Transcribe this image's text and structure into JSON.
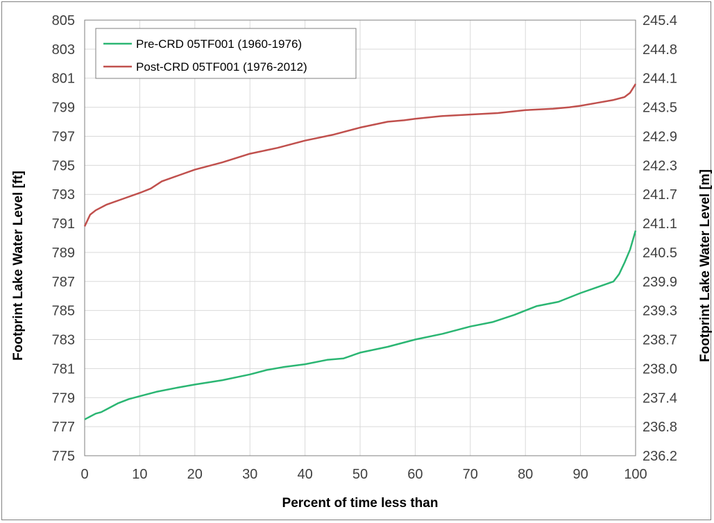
{
  "chart_data": {
    "type": "line",
    "xlabel": "Percent of time less than",
    "ylabel": "Footprint Lake Water Level [ft]",
    "y2label": "Footprint Lake Water Level [m]",
    "xlim": [
      0,
      100
    ],
    "ylim": [
      775,
      805
    ],
    "x_ticks": [
      "0",
      "10",
      "20",
      "30",
      "40",
      "50",
      "60",
      "70",
      "80",
      "90",
      "100"
    ],
    "y_ticks": [
      "775",
      "777",
      "779",
      "781",
      "783",
      "785",
      "787",
      "789",
      "791",
      "793",
      "795",
      "797",
      "799",
      "801",
      "803",
      "805"
    ],
    "y2_ticks": [
      "236.2",
      "236.8",
      "237.4",
      "238.0",
      "238.7",
      "239.3",
      "239.9",
      "240.5",
      "241.1",
      "241.7",
      "242.3",
      "242.9",
      "243.5",
      "244.1",
      "244.8",
      "245.4"
    ],
    "grid": true,
    "legend_position": "top-left",
    "series": [
      {
        "name": "Pre-CRD 05TF001 (1960-1976)",
        "color": "#2bb673",
        "x": [
          0,
          1,
          2,
          3,
          4,
          6,
          8,
          10,
          13,
          17,
          20,
          25,
          30,
          33,
          36,
          40,
          44,
          47,
          50,
          55,
          60,
          65,
          70,
          74,
          78,
          82,
          86,
          90,
          93,
          96,
          97,
          98,
          99,
          100
        ],
        "y": [
          777.5,
          777.7,
          777.9,
          778.0,
          778.2,
          778.6,
          778.9,
          779.1,
          779.4,
          779.7,
          779.9,
          780.2,
          780.6,
          780.9,
          781.1,
          781.3,
          781.6,
          781.7,
          782.1,
          782.5,
          783.0,
          783.4,
          783.9,
          784.2,
          784.7,
          785.3,
          785.6,
          786.2,
          786.6,
          787.0,
          787.5,
          788.3,
          789.2,
          790.5
        ]
      },
      {
        "name": "Post-CRD 05TF001 (1976-2012)",
        "color": "#c0504d",
        "x": [
          0,
          1,
          2,
          4,
          7,
          10,
          12,
          14,
          17,
          20,
          25,
          30,
          35,
          40,
          45,
          50,
          55,
          58,
          60,
          65,
          70,
          75,
          80,
          85,
          88,
          90,
          93,
          96,
          98,
          99,
          100
        ],
        "y": [
          790.8,
          791.6,
          791.9,
          792.3,
          792.7,
          793.1,
          793.4,
          793.9,
          794.3,
          794.7,
          795.2,
          795.8,
          796.2,
          796.7,
          797.1,
          797.6,
          798.0,
          798.1,
          798.2,
          798.4,
          798.5,
          798.6,
          798.8,
          798.9,
          799.0,
          799.1,
          799.3,
          799.5,
          799.7,
          800.0,
          800.6
        ]
      }
    ]
  }
}
